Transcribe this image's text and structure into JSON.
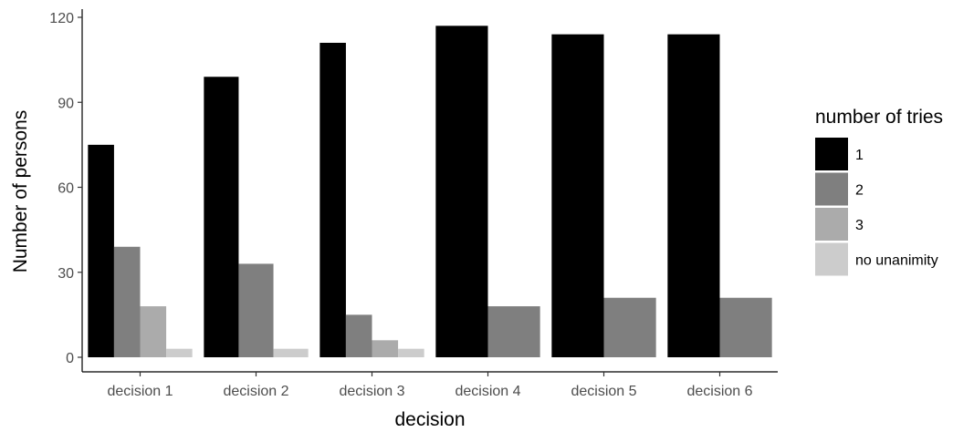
{
  "chart_data": {
    "type": "bar",
    "title": "",
    "xlabel": "decision",
    "ylabel": "Number of persons",
    "ylim": [
      0,
      120
    ],
    "yticks": [
      0,
      30,
      60,
      90,
      120
    ],
    "grid": false,
    "legend_position": "right",
    "legend_title": "number of tries",
    "categories": [
      "decision 1",
      "decision 2",
      "decision 3",
      "decision 4",
      "decision 5",
      "decision 6"
    ],
    "series": [
      {
        "name": "1",
        "color": "#000000",
        "values": [
          75,
          99,
          111,
          117,
          114,
          114
        ]
      },
      {
        "name": "2",
        "color": "#7f7f7f",
        "values": [
          39,
          33,
          15,
          18,
          21,
          21
        ]
      },
      {
        "name": "3",
        "color": "#ababab",
        "values": [
          18,
          null,
          6,
          null,
          null,
          null
        ]
      },
      {
        "name": "no unanimity",
        "color": "#cccccc",
        "values": [
          3,
          3,
          3,
          null,
          null,
          null
        ]
      }
    ]
  }
}
